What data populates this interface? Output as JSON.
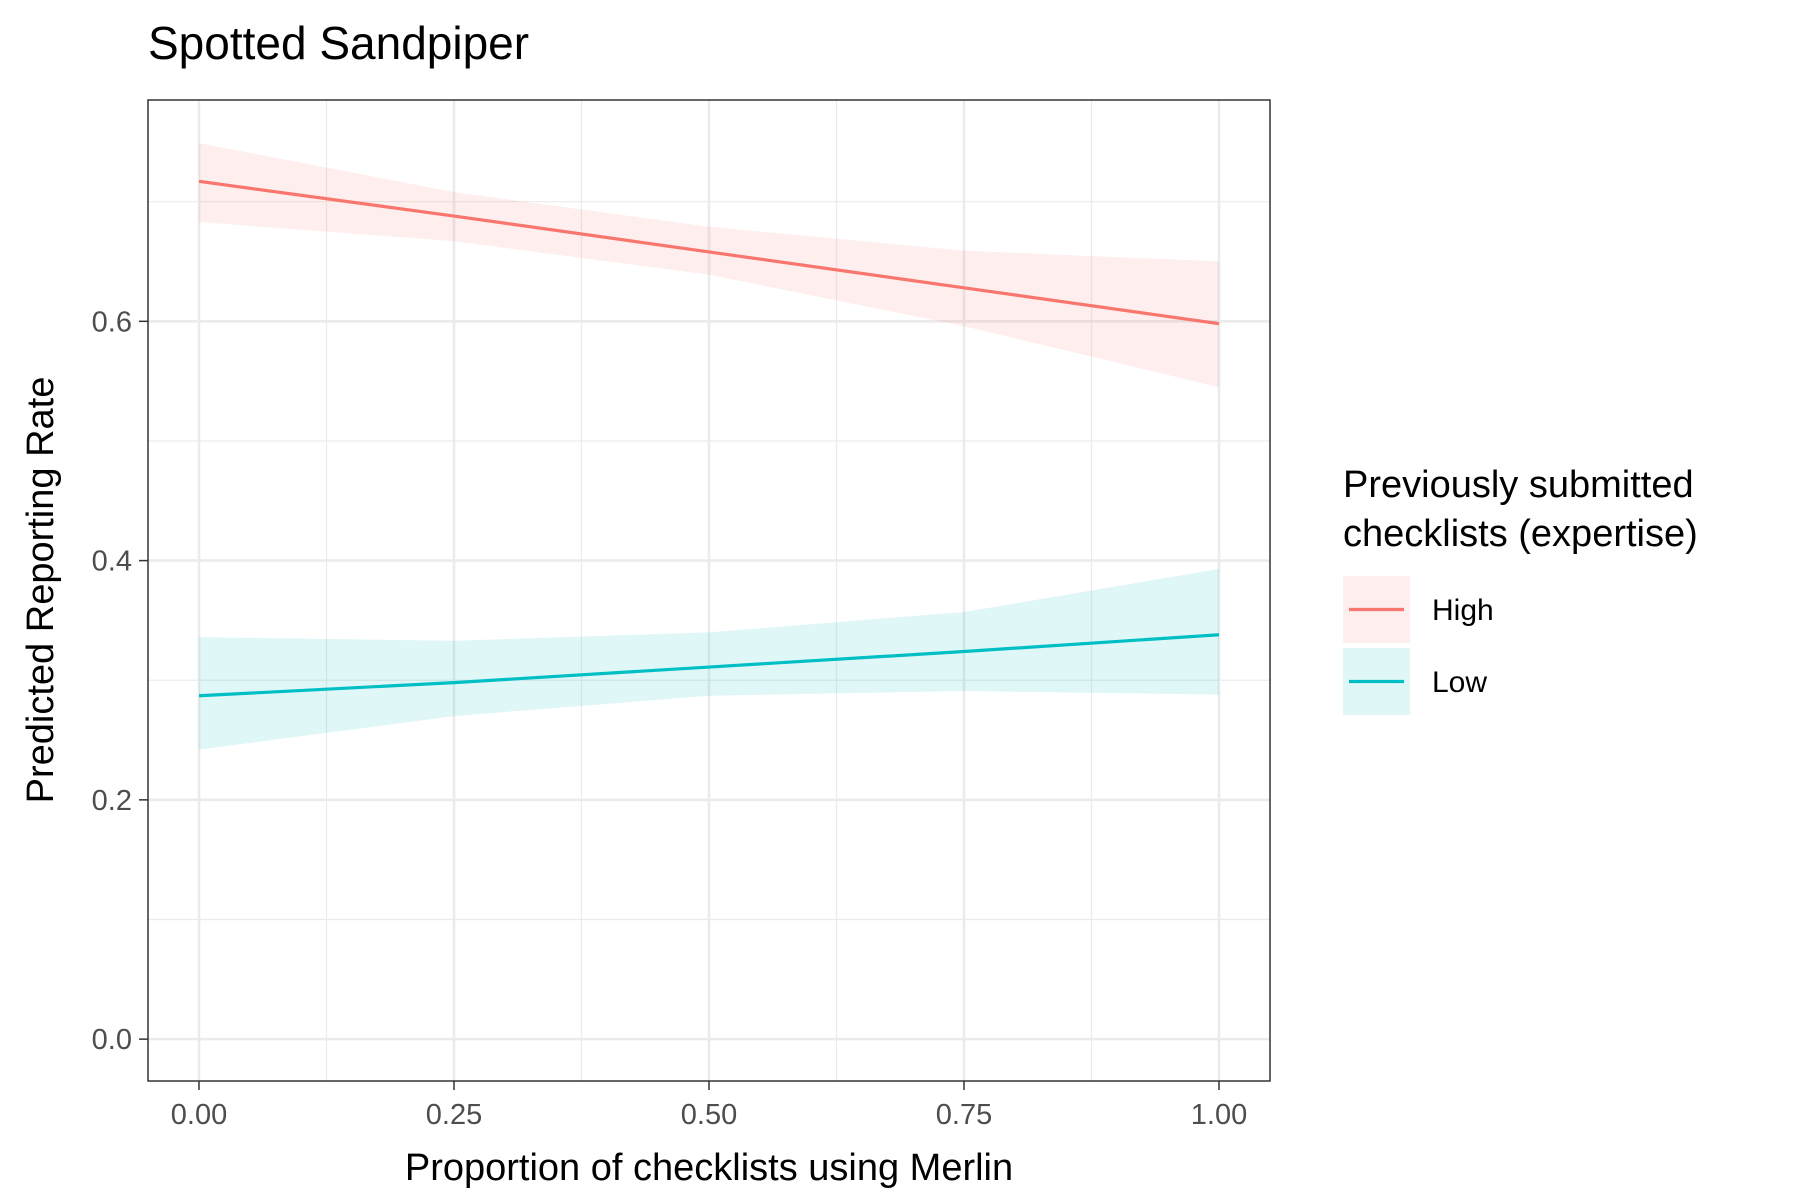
{
  "chart_data": {
    "type": "line",
    "title": "Spotted Sandpiper",
    "xlabel": "Proportion of checklists using Merlin",
    "ylabel": "Predicted Reporting Rate",
    "xlim": [
      -0.05,
      1.05
    ],
    "ylim": [
      -0.035,
      0.785
    ],
    "x_ticks": [
      0.0,
      0.25,
      0.5,
      0.75,
      1.0
    ],
    "x_tick_labels": [
      "0.00",
      "0.25",
      "0.50",
      "0.75",
      "1.00"
    ],
    "y_ticks": [
      0.0,
      0.2,
      0.4,
      0.6
    ],
    "y_tick_labels": [
      "0.0",
      "0.2",
      "0.4",
      "0.6"
    ],
    "grid": true,
    "legend": {
      "title_lines": [
        "Previously submitted",
        "checklists (expertise)"
      ],
      "position": "right"
    },
    "series": [
      {
        "name": "High",
        "color": "#F8766D",
        "x": [
          0.0,
          0.25,
          0.5,
          0.75,
          1.0
        ],
        "y": [
          0.717,
          0.688,
          0.658,
          0.628,
          0.598
        ],
        "ci_lower": [
          0.683,
          0.667,
          0.639,
          0.596,
          0.545
        ],
        "ci_upper": [
          0.749,
          0.708,
          0.679,
          0.659,
          0.65
        ]
      },
      {
        "name": "Low",
        "color": "#00BFC4",
        "x": [
          0.0,
          0.25,
          0.5,
          0.75,
          1.0
        ],
        "y": [
          0.287,
          0.298,
          0.311,
          0.324,
          0.338
        ],
        "ci_lower": [
          0.242,
          0.27,
          0.287,
          0.291,
          0.288
        ],
        "ci_upper": [
          0.336,
          0.333,
          0.34,
          0.357,
          0.393
        ]
      }
    ]
  }
}
